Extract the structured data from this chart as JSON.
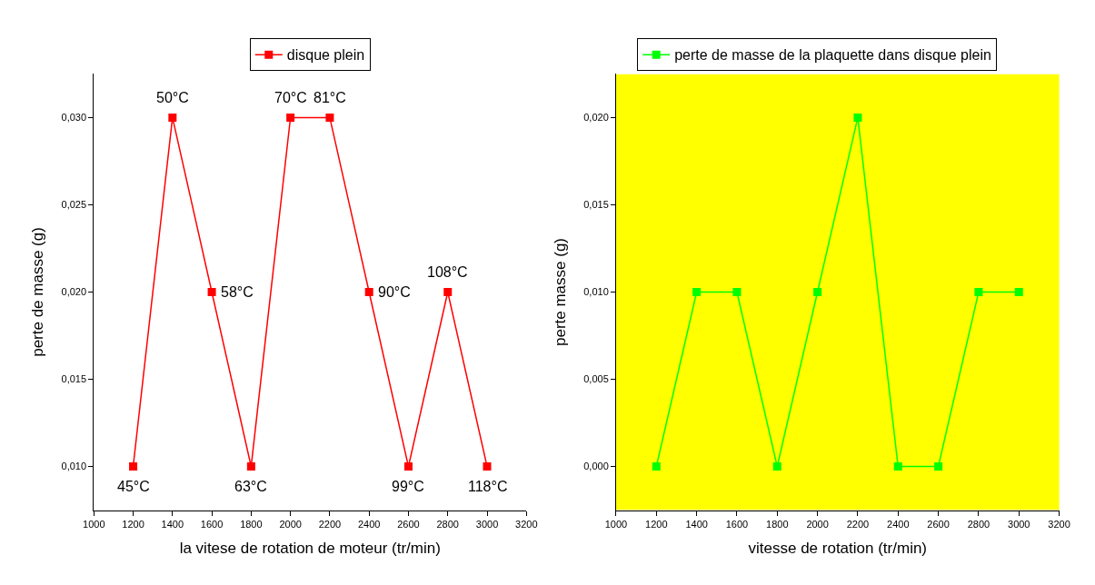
{
  "chart_data": [
    {
      "type": "line",
      "xlabel": "la vitese de rotation de moteur (tr/min)",
      "ylabel": "perte de masse (g)",
      "x": [
        1200,
        1400,
        1600,
        1800,
        2000,
        2200,
        2400,
        2600,
        2800,
        3000
      ],
      "series": [
        {
          "name": "disque plein",
          "color": "#ff0000",
          "values": [
            0.01,
            0.03,
            0.02,
            0.01,
            0.03,
            0.03,
            0.02,
            0.01,
            0.02,
            0.01
          ]
        }
      ],
      "xlim": [
        1000,
        3200
      ],
      "xticks": [
        1000,
        1200,
        1400,
        1600,
        1800,
        2000,
        2200,
        2400,
        2600,
        2800,
        3000,
        3200
      ],
      "ylim": [
        0.0075,
        0.0325
      ],
      "yticks": [
        {
          "value": 0.01,
          "label": "0,010"
        },
        {
          "value": 0.015,
          "label": "0,015"
        },
        {
          "value": 0.02,
          "label": "0,020"
        },
        {
          "value": 0.025,
          "label": "0,025"
        },
        {
          "value": 0.03,
          "label": "0,030"
        }
      ],
      "annotations": [
        {
          "text": "45°C",
          "x": 1200,
          "y": 0.01
        },
        {
          "text": "50°C",
          "x": 1400,
          "y": 0.03
        },
        {
          "text": "58°C",
          "x": 1600,
          "y": 0.02
        },
        {
          "text": "63°C",
          "x": 1800,
          "y": 0.01
        },
        {
          "text": "70°C",
          "x": 2000,
          "y": 0.03
        },
        {
          "text": "81°C",
          "x": 2200,
          "y": 0.03
        },
        {
          "text": "90°C",
          "x": 2400,
          "y": 0.02
        },
        {
          "text": "99°C",
          "x": 2600,
          "y": 0.01
        },
        {
          "text": "108°C",
          "x": 2800,
          "y": 0.02
        },
        {
          "text": "118°C",
          "x": 3000,
          "y": 0.01
        }
      ],
      "legend": "top",
      "grid": false,
      "marker": "square",
      "line_style": "solid"
    },
    {
      "type": "line",
      "xlabel": "vitesse de rotation (tr/min)",
      "ylabel": "perte masse (g)",
      "x": [
        1200,
        1400,
        1600,
        1800,
        2000,
        2200,
        2400,
        2600,
        2800,
        3000
      ],
      "series": [
        {
          "name": "perte de masse de la plaquette dans disque plein",
          "color": "#00ff00",
          "values": [
            0.0,
            0.01,
            0.01,
            0.0,
            0.01,
            0.02,
            0.0,
            0.0,
            0.01,
            0.01
          ]
        }
      ],
      "xlim": [
        1000,
        3200
      ],
      "xticks": [
        1000,
        1200,
        1400,
        1600,
        1800,
        2000,
        2200,
        2400,
        2600,
        2800,
        3000,
        3200
      ],
      "ylim": [
        -0.0025,
        0.0225
      ],
      "yticks": [
        {
          "value": 0.0,
          "label": "0,000"
        },
        {
          "value": 0.005,
          "label": "0,005"
        },
        {
          "value": 0.01,
          "label": "0,010"
        },
        {
          "value": 0.015,
          "label": "0,015"
        },
        {
          "value": 0.02,
          "label": "0,020"
        }
      ],
      "bands": [
        {
          "axis": "y",
          "from": -0.0025,
          "to": 0.0225,
          "color": "#ffff00"
        }
      ],
      "legend": "top left",
      "grid": false,
      "marker": "square",
      "line_style": "solid"
    }
  ]
}
